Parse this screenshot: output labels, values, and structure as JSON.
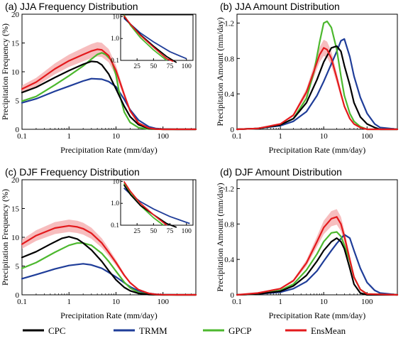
{
  "chart_data": [
    {
      "panel": "a",
      "type": "line",
      "title": "(a) JJA Frequency Distribution",
      "xlabel": "Precipitation Rate (mm/day)",
      "ylabel": "Precipitation Frequency (%)",
      "x_scale": "log",
      "xlim": [
        0.1,
        500
      ],
      "ylim": [
        0,
        20
      ],
      "xticks": [
        0.1,
        1,
        10,
        100
      ],
      "xtick_labels": [
        "0.1",
        "1",
        "10",
        "100"
      ],
      "yticks": [
        0,
        5,
        10,
        15,
        20
      ],
      "ytick_labels": [
        "0",
        "5",
        "10",
        "15",
        "20"
      ],
      "series": [
        {
          "name": "CPC",
          "color": "#000000",
          "x": [
            0.1,
            0.2,
            0.5,
            1,
            2,
            3,
            4,
            5,
            7,
            10,
            15,
            20,
            30,
            50,
            70,
            100,
            200,
            500
          ],
          "y": [
            6.4,
            7.3,
            9.0,
            10.2,
            11.3,
            11.8,
            11.7,
            11.2,
            9.6,
            7.0,
            4.0,
            2.2,
            0.8,
            0.12,
            0.04,
            0,
            0,
            0
          ]
        },
        {
          "name": "TRMM",
          "color": "#1f3d99",
          "x": [
            0.1,
            0.2,
            0.5,
            1,
            2,
            3,
            5,
            7,
            10,
            15,
            20,
            30,
            50,
            70,
            100,
            200,
            500
          ],
          "y": [
            4.6,
            5.3,
            6.6,
            7.5,
            8.4,
            8.8,
            8.7,
            8.3,
            7.4,
            5.2,
            3.4,
            1.6,
            0.45,
            0.15,
            0.05,
            0,
            0
          ]
        },
        {
          "name": "GPCP",
          "color": "#4cb82e",
          "x": [
            0.1,
            0.2,
            0.5,
            1,
            2,
            3,
            4,
            5,
            6,
            8,
            10,
            12,
            15,
            20,
            30,
            50,
            100,
            500
          ],
          "y": [
            4.9,
            5.7,
            7.7,
            9.3,
            11.0,
            12.2,
            13.0,
            13.3,
            13.0,
            12.0,
            9.4,
            6.0,
            3.0,
            1.2,
            0.3,
            0.05,
            0,
            0
          ]
        },
        {
          "name": "EnsMean",
          "color": "#e3191c",
          "x": [
            0.1,
            0.2,
            0.5,
            1,
            2,
            3,
            4,
            5,
            7,
            10,
            15,
            20,
            30,
            50,
            70,
            100,
            200,
            500
          ],
          "y": [
            7.0,
            8.2,
            10.5,
            11.9,
            13.0,
            13.6,
            13.9,
            13.8,
            12.8,
            10.2,
            6.0,
            3.2,
            1.1,
            0.2,
            0.05,
            0,
            0,
            0
          ]
        }
      ],
      "inset": {
        "type": "line",
        "y_scale": "log",
        "xlim": [
          0,
          110
        ],
        "ylim": [
          0.1,
          12
        ],
        "xticks": [
          25,
          50,
          75,
          100
        ],
        "xtick_labels": [
          "25",
          "50",
          "75",
          "100"
        ],
        "yticks": [
          0.1,
          1.0,
          10
        ],
        "ytick_labels": [
          "0.1",
          "1.0",
          "10"
        ],
        "series": [
          {
            "name": "CPC",
            "x": [
              5,
              15,
              30,
              50,
              70,
              85
            ],
            "y": [
              10,
              4.5,
              1.5,
              0.45,
              0.15,
              0.08
            ]
          },
          {
            "name": "TRMM",
            "x": [
              5,
              15,
              30,
              50,
              75,
              100
            ],
            "y": [
              8.5,
              4.5,
              1.8,
              0.7,
              0.25,
              0.12
            ]
          },
          {
            "name": "GPCP",
            "x": [
              5,
              15,
              30,
              50,
              70
            ],
            "y": [
              12,
              4,
              1.1,
              0.3,
              0.1
            ]
          },
          {
            "name": "EnsMean",
            "x": [
              5,
              15,
              30,
              50,
              70,
              80
            ],
            "y": [
              11,
              4.5,
              1.4,
              0.4,
              0.12,
              0.09
            ]
          }
        ]
      }
    },
    {
      "panel": "b",
      "type": "line",
      "title": "(b) JJA Amount Distribution",
      "xlabel": "Precipitation Rate (mm/day)",
      "ylabel": "Precipitation Amount (mm/day)",
      "x_scale": "log",
      "xlim": [
        0.1,
        500
      ],
      "ylim": [
        0,
        1.3
      ],
      "xticks": [
        0.1,
        1,
        10,
        100
      ],
      "xtick_labels": [
        "0.1",
        "1",
        "10",
        "100"
      ],
      "yticks": [
        0,
        0.4,
        0.8,
        1.2
      ],
      "ytick_labels": [
        "0",
        "0.4",
        "0.8",
        "1.2"
      ],
      "series": [
        {
          "name": "CPC",
          "color": "#000000",
          "x": [
            0.1,
            0.3,
            1,
            2,
            4,
            7,
            10,
            15,
            20,
            25,
            30,
            40,
            50,
            70,
            100,
            150,
            200,
            500
          ],
          "y": [
            0,
            0.01,
            0.05,
            0.12,
            0.3,
            0.56,
            0.76,
            0.92,
            0.94,
            0.88,
            0.72,
            0.5,
            0.3,
            0.14,
            0.06,
            0.02,
            0,
            0
          ]
        },
        {
          "name": "TRMM",
          "color": "#1f3d99",
          "x": [
            0.1,
            0.3,
            1,
            2,
            4,
            7,
            10,
            15,
            20,
            25,
            30,
            40,
            50,
            70,
            100,
            150,
            200,
            500
          ],
          "y": [
            0,
            0.01,
            0.04,
            0.09,
            0.2,
            0.38,
            0.54,
            0.74,
            0.88,
            1.0,
            1.02,
            0.82,
            0.6,
            0.36,
            0.18,
            0.06,
            0.02,
            0
          ]
        },
        {
          "name": "GPCP",
          "color": "#4cb82e",
          "x": [
            0.1,
            0.3,
            1,
            2,
            4,
            6,
            8,
            10,
            12,
            15,
            20,
            25,
            30,
            40,
            50,
            70,
            100,
            500
          ],
          "y": [
            0,
            0.01,
            0.05,
            0.12,
            0.35,
            0.65,
            0.98,
            1.2,
            1.22,
            1.15,
            0.9,
            0.6,
            0.38,
            0.18,
            0.09,
            0.03,
            0,
            0
          ]
        },
        {
          "name": "EnsMean",
          "color": "#e3191c",
          "x": [
            0.1,
            0.3,
            1,
            2,
            4,
            6,
            8,
            10,
            12,
            15,
            20,
            25,
            30,
            40,
            50,
            70,
            100,
            500
          ],
          "y": [
            0,
            0.01,
            0.06,
            0.16,
            0.42,
            0.66,
            0.84,
            0.92,
            0.9,
            0.8,
            0.58,
            0.4,
            0.26,
            0.12,
            0.06,
            0.02,
            0,
            0
          ]
        }
      ]
    },
    {
      "panel": "c",
      "type": "line",
      "title": "(c) DJF Frequency Distribution",
      "xlabel": "Precipitation Rate (mm/day)",
      "ylabel": "Precipitation Frequency (%)",
      "x_scale": "log",
      "xlim": [
        0.1,
        500
      ],
      "ylim": [
        0,
        20
      ],
      "xticks": [
        0.1,
        1,
        10,
        100
      ],
      "xtick_labels": [
        "0.1",
        "1",
        "10",
        "100"
      ],
      "yticks": [
        0,
        5,
        10,
        15,
        20
      ],
      "ytick_labels": [
        "0",
        "5",
        "10",
        "15",
        "20"
      ],
      "series": [
        {
          "name": "CPC",
          "color": "#000000",
          "x": [
            0.1,
            0.2,
            0.4,
            0.7,
            1,
            1.5,
            2,
            3,
            5,
            7,
            10,
            15,
            20,
            30,
            50,
            100,
            500
          ],
          "y": [
            6.5,
            7.5,
            8.8,
            9.8,
            10.1,
            9.7,
            9.0,
            7.8,
            5.8,
            4.2,
            2.6,
            1.3,
            0.7,
            0.25,
            0.05,
            0,
            0
          ]
        },
        {
          "name": "TRMM",
          "color": "#1f3d99",
          "x": [
            0.1,
            0.2,
            0.5,
            1,
            2,
            3,
            5,
            7,
            10,
            15,
            20,
            30,
            50,
            70,
            100,
            200,
            500
          ],
          "y": [
            2.8,
            3.5,
            4.5,
            5.1,
            5.4,
            5.2,
            4.6,
            3.9,
            3.1,
            2.1,
            1.4,
            0.7,
            0.25,
            0.1,
            0.04,
            0,
            0
          ]
        },
        {
          "name": "GPCP",
          "color": "#4cb82e",
          "x": [
            0.1,
            0.2,
            0.5,
            1,
            1.5,
            2,
            3,
            5,
            7,
            10,
            15,
            20,
            30,
            50,
            100,
            500
          ],
          "y": [
            4.6,
            5.6,
            7.4,
            8.6,
            9.0,
            9.0,
            8.6,
            7.2,
            5.8,
            4.1,
            2.2,
            1.2,
            0.4,
            0.08,
            0,
            0
          ]
        },
        {
          "name": "EnsMean",
          "color": "#e3191c",
          "x": [
            0.1,
            0.2,
            0.5,
            1,
            1.5,
            2,
            3,
            5,
            7,
            10,
            15,
            20,
            30,
            50,
            70,
            100,
            200,
            500
          ],
          "y": [
            8.8,
            10.3,
            11.6,
            12.0,
            11.8,
            11.5,
            10.7,
            9.0,
            7.4,
            5.6,
            3.4,
            2.1,
            0.9,
            0.25,
            0.08,
            0.02,
            0,
            0
          ]
        }
      ],
      "inset": {
        "type": "line",
        "y_scale": "log",
        "xlim": [
          0,
          110
        ],
        "ylim": [
          0.1,
          12
        ],
        "xticks": [
          25,
          50,
          75,
          100
        ],
        "xtick_labels": [
          "25",
          "50",
          "75",
          "100"
        ],
        "yticks": [
          0.1,
          1.0,
          10
        ],
        "ytick_labels": [
          "0.1",
          "1.0",
          "10"
        ],
        "series": [
          {
            "name": "CPC",
            "x": [
              5,
              15,
              30,
              50,
              70,
              85
            ],
            "y": [
              7,
              2.5,
              0.8,
              0.3,
              0.12,
              0.08
            ]
          },
          {
            "name": "TRMM",
            "x": [
              5,
              15,
              30,
              50,
              75,
              105
            ],
            "y": [
              5,
              2.6,
              1.2,
              0.55,
              0.25,
              0.12
            ]
          },
          {
            "name": "GPCP",
            "x": [
              5,
              15,
              30,
              50,
              65
            ],
            "y": [
              8,
              2.8,
              0.8,
              0.22,
              0.1
            ]
          },
          {
            "name": "EnsMean",
            "x": [
              5,
              15,
              30,
              50,
              70
            ],
            "y": [
              10,
              3.5,
              1.0,
              0.3,
              0.1
            ]
          }
        ]
      }
    },
    {
      "panel": "d",
      "type": "line",
      "title": "(d) DJF Amount Distribution",
      "xlabel": "Precipitation Rate (mm/day)",
      "ylabel": "Precipitation Amount (mm/day)",
      "x_scale": "log",
      "xlim": [
        0.1,
        500
      ],
      "ylim": [
        0,
        1.3
      ],
      "xticks": [
        0.1,
        1,
        10,
        100
      ],
      "xtick_labels": [
        "0.1",
        "1",
        "10",
        "100"
      ],
      "yticks": [
        0,
        0.4,
        0.8,
        1.2
      ],
      "ytick_labels": [
        "0",
        "0.4",
        "0.8",
        "1.2"
      ],
      "series": [
        {
          "name": "CPC",
          "color": "#000000",
          "x": [
            0.1,
            0.3,
            1,
            2,
            4,
            7,
            10,
            15,
            20,
            25,
            30,
            40,
            50,
            70,
            100,
            500
          ],
          "y": [
            0,
            0.01,
            0.04,
            0.1,
            0.22,
            0.38,
            0.5,
            0.6,
            0.64,
            0.6,
            0.52,
            0.3,
            0.12,
            0.02,
            0,
            0
          ]
        },
        {
          "name": "TRMM",
          "color": "#1f3d99",
          "x": [
            0.1,
            0.3,
            1,
            2,
            4,
            7,
            10,
            15,
            20,
            30,
            40,
            50,
            70,
            100,
            150,
            200,
            500
          ],
          "y": [
            0,
            0.01,
            0.03,
            0.07,
            0.15,
            0.27,
            0.38,
            0.5,
            0.58,
            0.68,
            0.64,
            0.5,
            0.3,
            0.14,
            0.05,
            0.02,
            0
          ]
        },
        {
          "name": "GPCP",
          "color": "#4cb82e",
          "x": [
            0.1,
            0.3,
            1,
            2,
            4,
            7,
            10,
            15,
            20,
            25,
            30,
            40,
            50,
            70,
            100,
            500
          ],
          "y": [
            0,
            0.01,
            0.05,
            0.12,
            0.28,
            0.46,
            0.6,
            0.7,
            0.71,
            0.66,
            0.56,
            0.38,
            0.2,
            0.06,
            0.01,
            0
          ]
        },
        {
          "name": "EnsMean",
          "color": "#e3191c",
          "x": [
            0.1,
            0.3,
            1,
            2,
            4,
            7,
            10,
            15,
            20,
            25,
            30,
            40,
            50,
            70,
            100,
            500
          ],
          "y": [
            0,
            0.02,
            0.07,
            0.16,
            0.36,
            0.6,
            0.76,
            0.86,
            0.88,
            0.8,
            0.66,
            0.4,
            0.2,
            0.06,
            0.01,
            0
          ]
        }
      ]
    }
  ],
  "legend": {
    "placement": "bottom",
    "items": [
      {
        "name": "CPC",
        "color": "#000000"
      },
      {
        "name": "TRMM",
        "color": "#1f3d99"
      },
      {
        "name": "GPCP",
        "color": "#4cb82e"
      },
      {
        "name": "EnsMean",
        "color": "#e3191c"
      }
    ]
  },
  "colors": {
    "band": "#f4a7a8",
    "axis": "#000000"
  }
}
